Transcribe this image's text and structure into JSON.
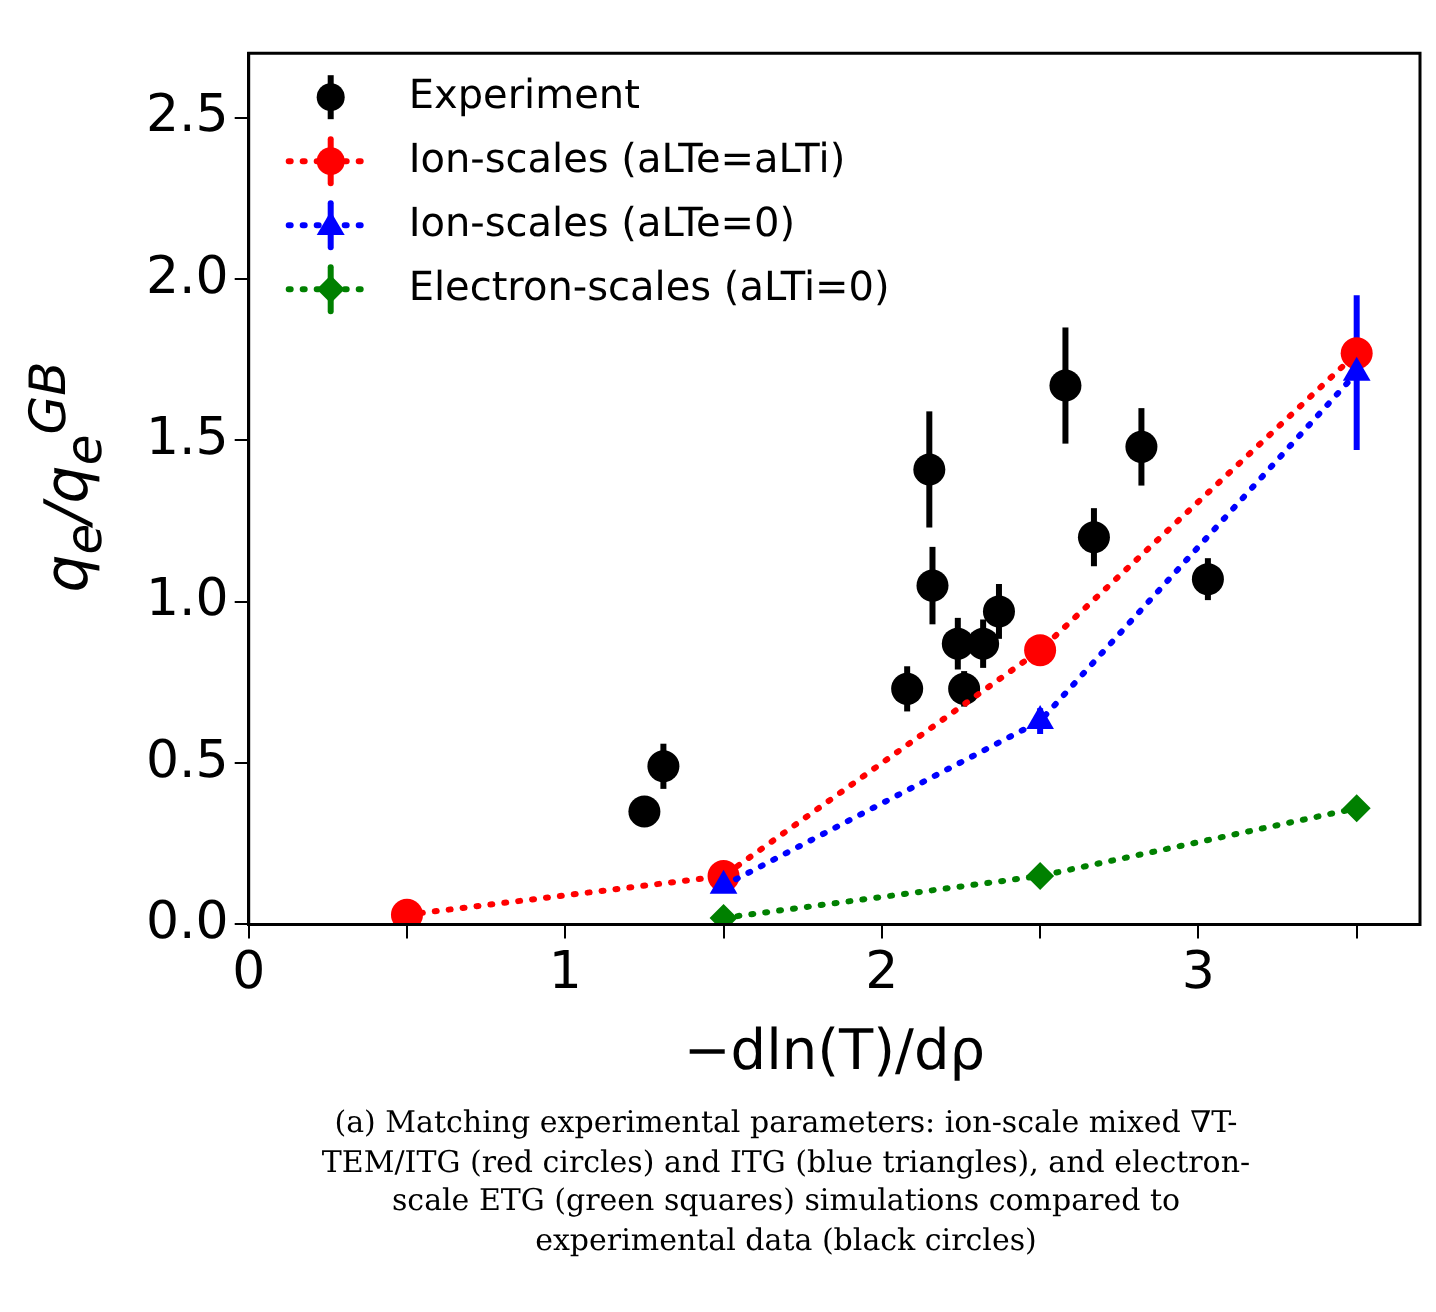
{
  "chart_data": {
    "type": "scatter",
    "xlabel": "−dln(T)/dρ",
    "ylabel": "q$_{e}$/q$_{e}$$^{GB}$",
    "xlim": [
      0,
      3.7
    ],
    "ylim": [
      0,
      2.7
    ],
    "xticks": [
      0,
      {
        "value": 0.5,
        "label": null
      },
      1,
      {
        "value": 1.5,
        "label": null
      },
      2,
      {
        "value": 2.5,
        "label": null
      },
      3,
      {
        "value": 3.5,
        "label": null
      }
    ],
    "yticks": [
      {
        "value": 0,
        "label": "0.0"
      },
      0.5,
      {
        "value": 1,
        "label": "1.0"
      },
      1.5,
      {
        "value": 2,
        "label": "2.0"
      },
      2.5
    ],
    "grid": false,
    "legend": "top left",
    "series": [
      {
        "name": "Experiment",
        "type": "scatter",
        "color": "#000000",
        "marker": "circle",
        "x": [
          1.25,
          1.31,
          2.08,
          2.15,
          2.16,
          2.24,
          2.26,
          2.32,
          2.37,
          2.58,
          2.67,
          2.82,
          3.03
        ],
        "values": [
          0.35,
          0.49,
          0.73,
          1.41,
          1.05,
          0.87,
          0.73,
          0.87,
          0.97,
          1.67,
          1.2,
          1.48,
          1.07
        ],
        "errors": [
          0.02,
          0.07,
          0.07,
          0.18,
          0.12,
          0.08,
          0.055,
          0.075,
          0.085,
          0.18,
          0.09,
          0.12,
          0.065
        ]
      },
      {
        "name": "Ion-scales (aLTe=aLTi)",
        "type": "line",
        "color": "#ff0000",
        "marker": "circle",
        "line_style": "dotted",
        "x": [
          0.5,
          1.5,
          2.5,
          3.5
        ],
        "values": [
          0.03,
          0.15,
          0.85,
          1.77
        ]
      },
      {
        "name": "Ion-scales (aLTe=0)",
        "type": "line",
        "color": "#0000ff",
        "marker": "triangle",
        "line_style": "dotted",
        "x": [
          1.5,
          2.5,
          3.5
        ],
        "values": [
          0.12,
          0.63,
          1.71
        ],
        "errors": [
          null,
          0.04,
          0.24
        ]
      },
      {
        "name": "Electron-scales (aLTi=0)",
        "type": "line",
        "color": "#008000",
        "marker": "diamond",
        "line_style": "dotted",
        "x": [
          1.5,
          2.5,
          3.5
        ],
        "values": [
          0.02,
          0.15,
          0.36
        ]
      }
    ],
    "annotations": [
      "(a) Matching experimental parameters: ion-scale mixed ∇T-TEM/ITG (red circles) and ITG (blue triangles), and electron-scale ETG (green squares) simulations compared to experimental data (black circles)"
    ]
  }
}
